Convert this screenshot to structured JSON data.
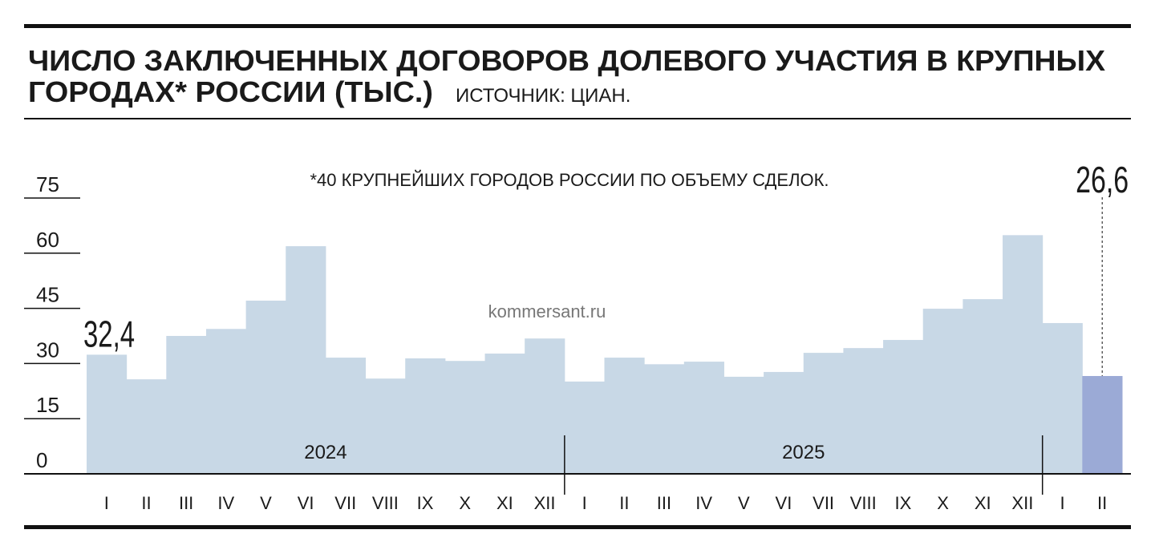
{
  "chart_data": {
    "type": "bar",
    "title": [
      "ЧИСЛО ЗАКЛЮЧЕННЫХ ДОГОВОРОВ ДОЛЕВОГО УЧАСТИЯ В КРУПНЫХ",
      "ГОРОДАХ* РОССИИ (ТЫС.)"
    ],
    "source": "ИСТОЧНИК: ЦИАН.",
    "note": "*40 КРУПНЕЙШИХ ГОРОДОВ РОССИИ ПО ОБЪЕМУ СДЕЛОК.",
    "watermark": "kommersant.ru",
    "categories": [
      "I",
      "II",
      "III",
      "IV",
      "V",
      "VI",
      "VII",
      "VIII",
      "IX",
      "X",
      "XI",
      "XII",
      "I",
      "II",
      "III",
      "IV",
      "V",
      "VI",
      "VII",
      "VIII",
      "IX",
      "X",
      "XI",
      "XII",
      "I",
      "II"
    ],
    "year_labels": [
      "2024",
      "2025"
    ],
    "values": [
      32.4,
      25.7,
      37.5,
      39.4,
      47.1,
      61.9,
      31.6,
      25.9,
      31.4,
      30.7,
      32.7,
      36.8,
      25.1,
      31.6,
      29.8,
      30.5,
      26.4,
      27.7,
      32.9,
      34.2,
      36.4,
      44.9,
      47.5,
      64.9,
      41.0,
      26.6
    ],
    "value_labels": [
      "32,4",
      null,
      null,
      null,
      null,
      null,
      null,
      null,
      null,
      null,
      null,
      null,
      null,
      null,
      null,
      null,
      null,
      null,
      null,
      null,
      null,
      null,
      null,
      null,
      null,
      "26,6"
    ],
    "color": "#c8d8e6",
    "highlight_color": "#9baad6",
    "ylim": [
      0,
      75
    ],
    "yticks": [
      0,
      15,
      30,
      45,
      60,
      75
    ]
  }
}
